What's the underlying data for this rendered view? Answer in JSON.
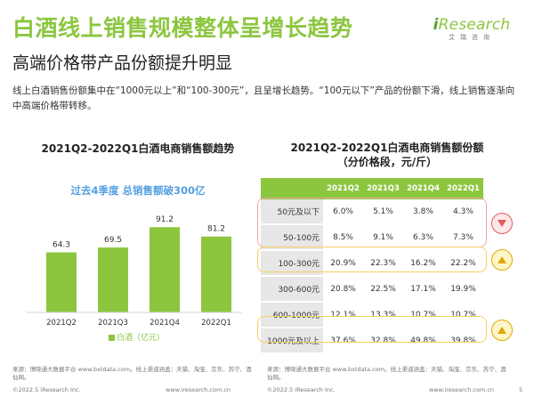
{
  "title": "白酒线上销售规模整体呈增长趋势",
  "subtitle": "高端价格带产品份额提升明显",
  "logo": {
    "brand_i": "i",
    "brand_rest": "Research",
    "cn": "艾瑞咨询"
  },
  "description": "线上白酒销售份额集中在“1000元以上”和“100-300元”，且呈增长趋势。“100元以下”产品的份额下滑，线上销售逐渐向中高端价格带转移。",
  "colors": {
    "accent": "#8cc63f",
    "highlight": "#55a0e0",
    "down": "#e15a5a",
    "up": "#e0a800"
  },
  "chart_data": [
    {
      "type": "bar",
      "title": "2021Q2-2022Q1白酒电商销售额趋势",
      "annotation": "过去4季度 总销售额破300亿",
      "categories": [
        "2021Q2",
        "2021Q3",
        "2021Q4",
        "2022Q1"
      ],
      "series": [
        {
          "name": "白酒（亿元）",
          "values": [
            64.3,
            69.5,
            91.2,
            81.2
          ]
        }
      ],
      "value_labels": [
        "64.3",
        "69.5",
        "91.2",
        "81.2"
      ],
      "ylim": [
        0,
        100
      ],
      "grid": false,
      "legend": "bottom"
    },
    {
      "type": "table",
      "title": "2021Q2-2022Q1白酒电商销售额份额",
      "subtitle": "（分价格段，元/斤）",
      "columns": [
        "2021Q2",
        "2021Q3",
        "2021Q4",
        "2022Q1"
      ],
      "rows": [
        {
          "label": "50元及以下",
          "values": [
            "6.0%",
            "5.1%",
            "3.8%",
            "4.3%"
          ]
        },
        {
          "label": "50-100元",
          "values": [
            "8.5%",
            "9.1%",
            "6.3%",
            "7.3%"
          ]
        },
        {
          "label": "100-300元",
          "values": [
            "20.9%",
            "22.3%",
            "16.2%",
            "22.2%"
          ]
        },
        {
          "label": "300-600元",
          "values": [
            "20.8%",
            "22.5%",
            "17.1%",
            "19.9%"
          ]
        },
        {
          "label": "600-1000元",
          "values": [
            "12.1%",
            "13.3%",
            "10.7%",
            "10.7%"
          ]
        },
        {
          "label": "1000元及以上",
          "values": [
            "37.6%",
            "32.8%",
            "49.8%",
            "39.8%"
          ]
        }
      ],
      "trends": [
        {
          "rows": [
            "50元及以下",
            "50-100元"
          ],
          "direction": "down"
        },
        {
          "rows": [
            "100-300元"
          ],
          "direction": "up"
        },
        {
          "rows": [
            "1000元及以上"
          ],
          "direction": "up"
        }
      ]
    }
  ],
  "footer": {
    "source_left": "来源：博晓通大数据平台 www.bxtdata.com。线上渠道涵盖：天猫、淘宝、京东、苏宁、酒仙网。",
    "source_right": "来源：博晓通大数据平台 www.bxtdata.com。线上渠道涵盖：天猫、淘宝、京东、苏宁、酒仙网。",
    "copyright": "©2022.5 iResearch Inc.",
    "url": "www.iresearch.com.cn",
    "page": "5"
  }
}
